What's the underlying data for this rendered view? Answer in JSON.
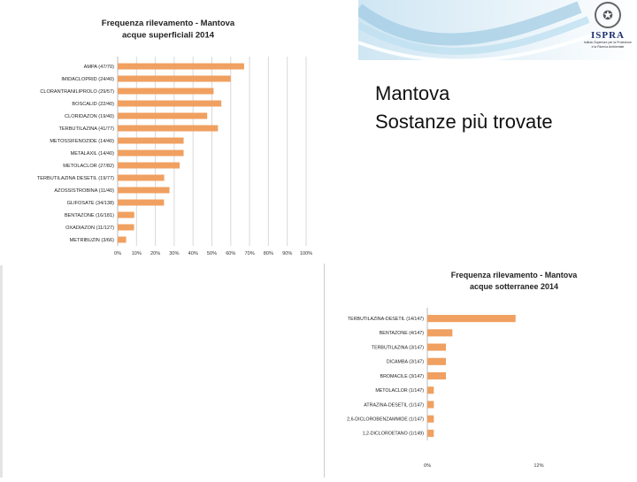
{
  "slide": {
    "title_line1": "Mantova",
    "title_line2": "Sostanze più trovate"
  },
  "logo": {
    "name": "ISPRA",
    "subtitle_line1": "Istituto Superiore per la Protezione",
    "subtitle_line2": "e la Ricerca Ambientale"
  },
  "colors": {
    "bar": "#f0a060",
    "grid": "#d8d8d8",
    "title": "#222222"
  },
  "chart_data": [
    {
      "type": "bar",
      "orientation": "horizontal",
      "title_line1": "Frequenza rilevamento -  Mantova",
      "title_line2": "acque superficiali  2014",
      "categories": [
        "AMPA (47/70)",
        "IMIDACLOPRID (24/40)",
        "CLORANTRANILIPROLO (29/57)",
        "BOSCALID (22/40)",
        "CLORIDAZON (19/40)",
        "TERBUTILAZINA (41/77)",
        "METOSSIFENOZIDE (14/40)",
        "METALAXIL (14/40)",
        "METOLACLOR (27/82)",
        "TERBUTILAZINA DESETIL (19/77)",
        "AZOSSISTROBINA (11/40)",
        "GLIFOSATE (34/138)",
        "BENTAZONE (16/181)",
        "OXADIAZON (11/127)",
        "METRIBUZIN (3/66)"
      ],
      "values": [
        67.1,
        60.0,
        50.9,
        55.0,
        47.5,
        53.2,
        35.0,
        35.0,
        32.9,
        24.7,
        27.5,
        24.6,
        8.8,
        8.7,
        4.5
      ],
      "xlim": [
        0,
        100
      ],
      "xticks": [
        "0%",
        "10%",
        "20%",
        "30%",
        "40%",
        "50%",
        "60%",
        "70%",
        "80%",
        "90%",
        "100%"
      ],
      "grid": true
    },
    {
      "type": "bar",
      "orientation": "horizontal",
      "title_line1": "Frequenza rilevamento -  Mantova",
      "title_line2": "acque sotterranee 2014",
      "categories": [
        "TERBUTILAZINA-DESETIL (14/147)",
        "BENTAZONE (4/147)",
        "TERBUTILAZINA (3/147)",
        "DICAMBA (3/147)",
        "BROMACILE (3/147)",
        "METOLACLOR (1/147)",
        "ATRAZINA-DESETIL (1/147)",
        "2,6-DICLOROBENZAMMIDE (1/147)",
        "1,2-DICLOROETANO (1/149)"
      ],
      "values": [
        9.5,
        2.7,
        2.0,
        2.0,
        2.0,
        0.7,
        0.7,
        0.7,
        0.7
      ],
      "xlim": [
        0,
        12
      ],
      "xticks": [
        "0%",
        "12%"
      ],
      "grid": false
    }
  ]
}
